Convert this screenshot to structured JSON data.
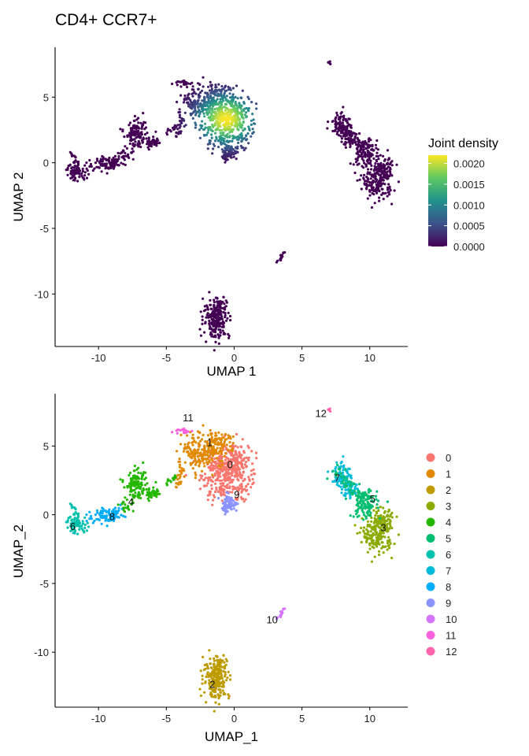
{
  "chart_data": [
    {
      "type": "scatter",
      "title": "CD4+ CCR7+",
      "xlabel": "UMAP 1",
      "ylabel": "UMAP 2",
      "xlim": [
        -13.2,
        12.8
      ],
      "ylim": [
        -14,
        8.8
      ],
      "xticks": [
        -10,
        -5,
        0,
        5,
        10
      ],
      "yticks": [
        5,
        0,
        -5,
        -10
      ],
      "colorbar": {
        "title": "Joint density",
        "range": [
          0,
          0.0022
        ],
        "ticks": [
          "0.0020",
          "0.0015",
          "0.0010",
          "0.0005",
          "0.0000"
        ],
        "tick_values": [
          0.002,
          0.0015,
          0.001,
          0.0005,
          0
        ],
        "colors": [
          "#440154",
          "#3b528b",
          "#21918c",
          "#5ec962",
          "#fde725"
        ]
      },
      "density_peak": {
        "x": -0.6,
        "y": 3.3,
        "value": 0.0022
      }
    },
    {
      "type": "scatter",
      "title": "",
      "xlabel": "UMAP_1",
      "ylabel": "UMAP_2",
      "xlim": [
        -13.2,
        12.8
      ],
      "ylim": [
        -14,
        8.8
      ],
      "xticks": [
        -10,
        -5,
        0,
        5,
        10
      ],
      "yticks": [
        5,
        0,
        -5,
        -10
      ],
      "legend_position": "right",
      "clusters": [
        {
          "name": "0",
          "color": "#F8766D",
          "label_x": -0.3,
          "label_y": 3.4
        },
        {
          "name": "1",
          "color": "#E18A00",
          "label_x": -1.8,
          "label_y": 5.0
        },
        {
          "name": "2",
          "color": "#BE9C00",
          "label_x": -1.6,
          "label_y": -12.6
        },
        {
          "name": "3",
          "color": "#8CAB00",
          "label_x": 11.0,
          "label_y": -1.2
        },
        {
          "name": "4",
          "color": "#24B700",
          "label_x": -7.6,
          "label_y": 0.7
        },
        {
          "name": "5",
          "color": "#00BE70",
          "label_x": 10.2,
          "label_y": 0.9
        },
        {
          "name": "6",
          "color": "#00C1AB",
          "label_x": -11.9,
          "label_y": -1.1
        },
        {
          "name": "7",
          "color": "#00BBDA",
          "label_x": 7.6,
          "label_y": 2.4
        },
        {
          "name": "8",
          "color": "#00ACFC",
          "label_x": -9.0,
          "label_y": -0.4
        },
        {
          "name": "9",
          "color": "#8B93FF",
          "label_x": 0.2,
          "label_y": 1.2
        },
        {
          "name": "10",
          "color": "#D575FE",
          "label_x": 2.8,
          "label_y": -7.9
        },
        {
          "name": "11",
          "color": "#F962DD",
          "label_x": -3.4,
          "label_y": 6.8
        },
        {
          "name": "12",
          "color": "#FF65AC",
          "label_x": 6.4,
          "label_y": 7.1
        }
      ]
    }
  ]
}
